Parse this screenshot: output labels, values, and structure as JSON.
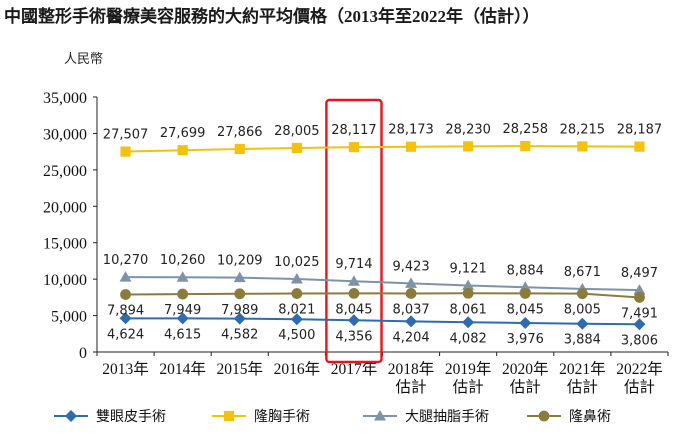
{
  "chart_data": {
    "type": "line",
    "title": "中國整形手術醫療美容服務的大約平均價格（2013年至2022年（估計））",
    "ylabel": "人民幣",
    "ylim": [
      0,
      35000
    ],
    "yticks": [
      "0",
      "5,000",
      "10,000",
      "15,000",
      "20,000",
      "25,000",
      "30,000",
      "35,000"
    ],
    "categories": [
      [
        "2013年"
      ],
      [
        "2014年"
      ],
      [
        "2015年"
      ],
      [
        "2016年"
      ],
      [
        "2017年"
      ],
      [
        "2018年",
        "估計"
      ],
      [
        "2019年",
        "估計"
      ],
      [
        "2020年",
        "估計"
      ],
      [
        "2021年",
        "估計"
      ],
      [
        "2022年",
        "估計"
      ]
    ],
    "highlight_category_index": 4,
    "highlight_color": "#e8141b",
    "grid": false,
    "legend_position": "bottom",
    "series": [
      {
        "name": "雙眼皮手術",
        "color": "#2e6bb0",
        "marker": "diamond",
        "values": [
          4624,
          4615,
          4582,
          4500,
          4356,
          4204,
          4082,
          3976,
          3884,
          3806
        ],
        "labels": [
          "4,624",
          "4,615",
          "4,582",
          "4,500",
          "4,356",
          "4,204",
          "4,082",
          "3,976",
          "3,884",
          "3,806"
        ],
        "label_position": "below"
      },
      {
        "name": "隆胸手術",
        "color": "#f4c10f",
        "marker": "square",
        "values": [
          27507,
          27699,
          27866,
          28005,
          28117,
          28173,
          28230,
          28258,
          28215,
          28187
        ],
        "labels": [
          "27,507",
          "27,699",
          "27,866",
          "28,005",
          "28,117",
          "28,173",
          "28,230",
          "28,258",
          "28,215",
          "28,187"
        ],
        "label_position": "above"
      },
      {
        "name": "大腿抽脂手術",
        "color": "#7e93a8",
        "marker": "triangle",
        "values": [
          10270,
          10260,
          10209,
          10025,
          9714,
          9423,
          9121,
          8884,
          8671,
          8497
        ],
        "labels": [
          "10,270",
          "10,260",
          "10,209",
          "10,025",
          "9,714",
          "9,423",
          "9,121",
          "8,884",
          "8,671",
          "8,497"
        ],
        "label_position": "above"
      },
      {
        "name": "隆鼻術",
        "color": "#8a7c3c",
        "marker": "circle",
        "values": [
          7894,
          7949,
          7989,
          8021,
          8045,
          8037,
          8061,
          8045,
          8005,
          7491
        ],
        "labels": [
          "7,894",
          "7,949",
          "7,989",
          "8,021",
          "8,045",
          "8,037",
          "8,061",
          "8,045",
          "8,005",
          "7,491"
        ],
        "label_position": "below"
      }
    ]
  }
}
